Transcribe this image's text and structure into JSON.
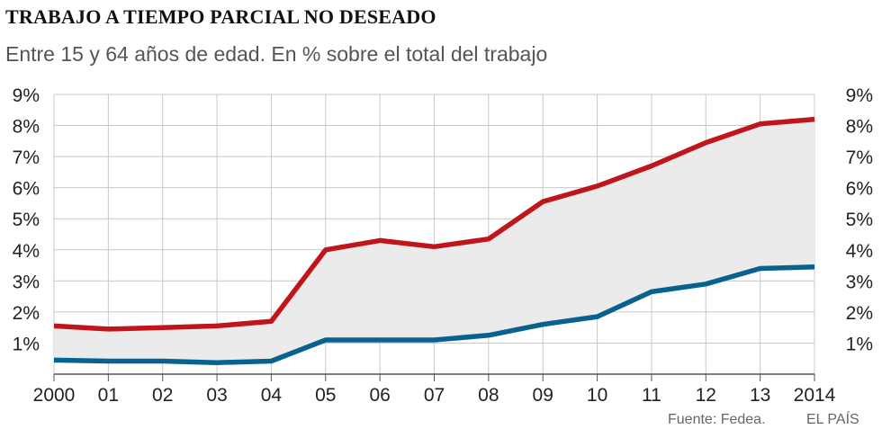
{
  "title": "TRABAJO A TIEMPO PARCIAL NO DESEADO",
  "subtitle": "Entre 15 y 64 años de edad. En % sobre el total del trabajo",
  "source": "Fuente: Fedea.",
  "brand": "EL PAÍS",
  "colors": {
    "series_red": "#c0151b",
    "series_blue": "#08628f",
    "fill": "#ebebeb",
    "grid": "#c8c8c8",
    "axis": "#555555"
  },
  "chart_data": {
    "type": "line",
    "title": "TRABAJO A TIEMPO PARCIAL NO DESEADO",
    "subtitle": "Entre 15 y 64 años de edad. En % sobre el total del trabajo",
    "categories": [
      "2000",
      "01",
      "02",
      "03",
      "04",
      "05",
      "06",
      "07",
      "08",
      "09",
      "10",
      "11",
      "12",
      "13",
      "2014"
    ],
    "series": [
      {
        "values": [
          1.55,
          1.45,
          1.5,
          1.55,
          1.7,
          4.0,
          4.3,
          4.1,
          4.35,
          5.55,
          6.05,
          6.7,
          7.45,
          8.05,
          8.2
        ],
        "color": "#c0151b"
      },
      {
        "values": [
          0.45,
          0.42,
          0.42,
          0.37,
          0.42,
          1.1,
          1.1,
          1.1,
          1.25,
          1.6,
          1.85,
          2.65,
          2.9,
          3.4,
          3.45
        ],
        "color": "#08628f"
      }
    ],
    "ylim": [
      0,
      9
    ],
    "yticks": [
      "",
      "1%",
      "2%",
      "3%",
      "4%",
      "5%",
      "6%",
      "7%",
      "8%",
      "9%"
    ],
    "grid": true,
    "fill_between": true,
    "y_axis_both_sides": true
  }
}
